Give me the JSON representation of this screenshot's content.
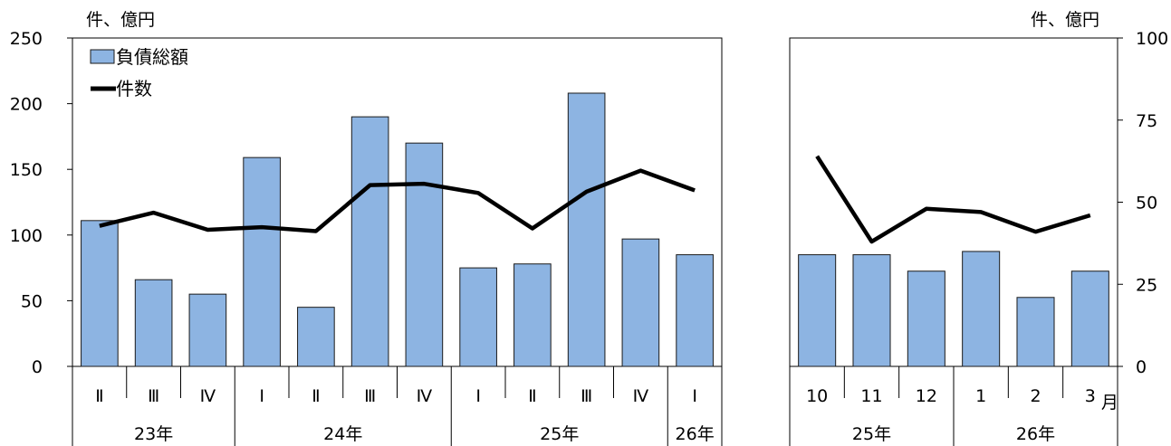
{
  "colors": {
    "bar_fill": "#8DB4E2",
    "bar_stroke": "#1a1a1a",
    "line": "#000000",
    "axis": "#000000"
  },
  "chart_data": [
    {
      "type": "bar+line",
      "left_unit": "件、億円",
      "ylim_left": [
        0,
        250
      ],
      "yticks_left": [
        "0",
        "50",
        "100",
        "150",
        "200",
        "250"
      ],
      "categories": [
        "Ⅱ",
        "Ⅲ",
        "Ⅳ",
        "Ⅰ",
        "Ⅱ",
        "Ⅲ",
        "Ⅳ",
        "Ⅰ",
        "Ⅱ",
        "Ⅲ",
        "Ⅳ",
        "Ⅰ"
      ],
      "year_groups": [
        {
          "label": "23年",
          "count": 3
        },
        {
          "label": "24年",
          "count": 4
        },
        {
          "label": "25年",
          "count": 4
        },
        {
          "label": "26年",
          "count": 1
        }
      ],
      "legend": {
        "bar": "負債総額",
        "line": "件数",
        "placement": "top-left"
      },
      "series": [
        {
          "name": "負債総額",
          "kind": "bar",
          "values": [
            111,
            66,
            55,
            159,
            45,
            190,
            170,
            75,
            78,
            208,
            97,
            85
          ]
        },
        {
          "name": "件数",
          "kind": "line",
          "values": [
            107,
            117,
            104,
            106,
            103,
            138,
            139,
            132,
            105,
            133,
            149,
            134
          ]
        }
      ]
    },
    {
      "type": "bar+line",
      "right_unit": "件、億円",
      "ylim_right": [
        0,
        100
      ],
      "yticks_right": [
        "0",
        "25",
        "50",
        "75",
        "100"
      ],
      "categories": [
        "10",
        "11",
        "12",
        "1",
        "2",
        "3"
      ],
      "month_suffix": "月",
      "year_groups": [
        {
          "label": "25年",
          "count": 3
        },
        {
          "label": "26年",
          "count": 3
        }
      ],
      "series": [
        {
          "name": "負債総額",
          "kind": "bar",
          "values": [
            34,
            34,
            29,
            35,
            21,
            29
          ]
        },
        {
          "name": "件数",
          "kind": "line",
          "values": [
            64,
            38,
            48,
            47,
            41,
            46
          ]
        }
      ]
    }
  ]
}
